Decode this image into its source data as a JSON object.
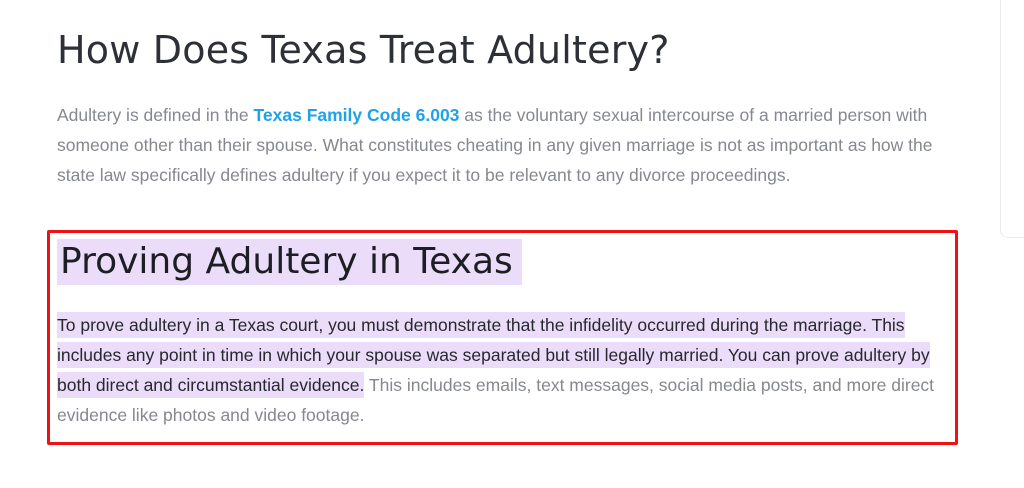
{
  "article": {
    "title": "How Does Texas Treat Adultery?",
    "intro": {
      "text_before_link": "Adultery is defined in the ",
      "link_text": "Texas Family Code 6.003",
      "text_after_link": " as the voluntary sexual intercourse of a married person with someone other than their spouse. What constitutes cheating in any given marriage is not as important as how the state law specifically defines adultery if you expect it to be relevant to any divorce proceedings."
    },
    "proving_section": {
      "heading": "Proving Adultery in Texas",
      "highlighted_text": "To prove adultery in a Texas court, you must demonstrate that the infidelity occurred during the marriage. This includes any point in time in which your spouse was separated but still legally married. You can prove adultery by both direct and circumstantial evidence.",
      "unhighlighted_text": " This includes emails, text messages, social media posts, and more direct evidence like photos and video footage."
    }
  },
  "colors": {
    "link_blue": "#1fa2e9",
    "highlight_lavender": "#ebdcf9",
    "annotation_red": "#ef1212",
    "heading_dark": "#2e3037",
    "body_gray": "#85888f",
    "highlighted_text_dark": "#27282e",
    "side_card_border": "#ebebeb"
  }
}
